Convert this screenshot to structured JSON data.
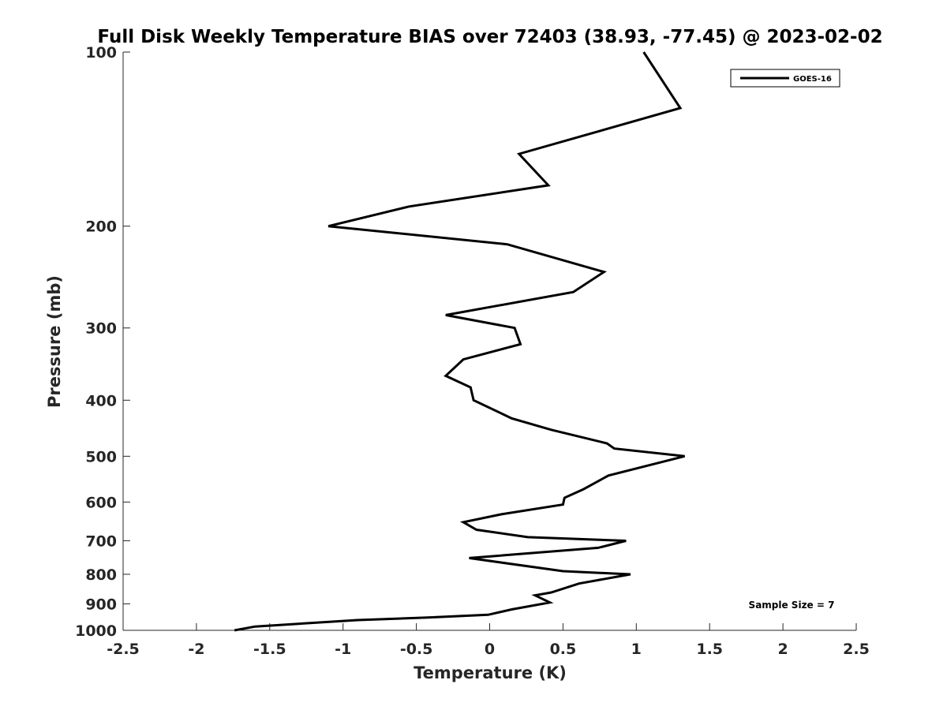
{
  "chart_data": {
    "type": "line",
    "title": "Full Disk Weekly Temperature BIAS over 72403 (38.93, -77.45) @ 2023-02-02",
    "xlabel": "Temperature (K)",
    "ylabel": "Pressure (mb)",
    "xlim": [
      -2.5,
      2.5
    ],
    "ylim": [
      100,
      1000
    ],
    "y_scale": "log",
    "y_reversed": true,
    "x_ticks": [
      -2.5,
      -2,
      -1.5,
      -1,
      -0.5,
      0,
      0.5,
      1,
      1.5,
      2,
      2.5
    ],
    "x_tick_labels": [
      "-2.5",
      "-2",
      "-1.5",
      "-1",
      "-0.5",
      "0",
      "0.5",
      "1",
      "1.5",
      "2",
      "2.5"
    ],
    "y_ticks": [
      100,
      200,
      300,
      400,
      500,
      600,
      700,
      800,
      900,
      1000
    ],
    "y_tick_labels": [
      "100",
      "200",
      "300",
      "400",
      "500",
      "600",
      "700",
      "800",
      "900",
      "1000"
    ],
    "grid": false,
    "legend_position": "top-right",
    "line_color": "#000000",
    "series": [
      {
        "name": "GOES-16",
        "points": [
          [
            1.05,
            100
          ],
          [
            1.3,
            125
          ],
          [
            0.2,
            150
          ],
          [
            0.4,
            170
          ],
          [
            -0.55,
            185
          ],
          [
            -1.1,
            200
          ],
          [
            0.12,
            215
          ],
          [
            0.78,
            240
          ],
          [
            0.57,
            260
          ],
          [
            -0.3,
            285
          ],
          [
            0.17,
            300
          ],
          [
            0.21,
            320
          ],
          [
            -0.18,
            340
          ],
          [
            -0.3,
            363
          ],
          [
            -0.13,
            380
          ],
          [
            -0.11,
            400
          ],
          [
            0.15,
            430
          ],
          [
            0.42,
            450
          ],
          [
            0.8,
            475
          ],
          [
            0.85,
            485
          ],
          [
            1.33,
            500
          ],
          [
            0.81,
            540
          ],
          [
            0.64,
            570
          ],
          [
            0.51,
            590
          ],
          [
            0.5,
            606
          ],
          [
            0.08,
            630
          ],
          [
            -0.18,
            650
          ],
          [
            -0.09,
            670
          ],
          [
            0.26,
            690
          ],
          [
            0.93,
            700
          ],
          [
            0.74,
            720
          ],
          [
            -0.14,
            750
          ],
          [
            0.5,
            790
          ],
          [
            0.96,
            800
          ],
          [
            0.61,
            830
          ],
          [
            0.42,
            860
          ],
          [
            0.31,
            870
          ],
          [
            0.41,
            895
          ],
          [
            0.15,
            920
          ],
          [
            -0.01,
            940
          ],
          [
            -0.42,
            950
          ],
          [
            -0.9,
            960
          ],
          [
            -1.6,
            985
          ],
          [
            -1.74,
            1000
          ]
        ]
      }
    ],
    "annotations": [
      "Sample Size = 7"
    ]
  }
}
